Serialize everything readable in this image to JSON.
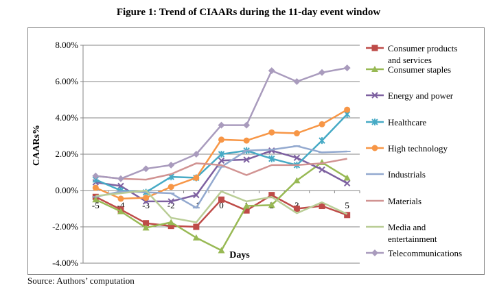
{
  "title": "Figure 1: Trend of CIAARs during the 11-day event window",
  "source": "Source: Authors’ computation",
  "chart_data": {
    "type": "line",
    "title": "Figure 1: Trend of CIAARs during the 11-day event window",
    "xlabel": "Days",
    "ylabel": "CAARs%",
    "categories": [
      "-5",
      "-4",
      "-3",
      "-2",
      "-1",
      "0",
      "1",
      "2",
      "3",
      "4",
      "5"
    ],
    "y_ticks": [
      "-4.00%",
      "-2.00%",
      "0.00%",
      "2.00%",
      "4.00%",
      "6.00%",
      "8.00%"
    ],
    "ylim": [
      -4,
      8
    ],
    "grid": true,
    "legend_position": "right",
    "series": [
      {
        "name": "Consumer products and services",
        "color": "#be4b48",
        "marker": "square",
        "values": [
          -0.35,
          -1.05,
          -1.8,
          -1.95,
          -2.0,
          -0.5,
          -1.1,
          -0.25,
          -1.0,
          -0.85,
          -1.35
        ]
      },
      {
        "name": "Consumer staples",
        "color": "#98b954",
        "marker": "triangle",
        "values": [
          -0.5,
          -1.15,
          -2.05,
          -1.75,
          -2.6,
          -3.3,
          -0.85,
          -0.8,
          0.55,
          1.55,
          0.7
        ]
      },
      {
        "name": "Energy and power",
        "color": "#7d60a0",
        "marker": "x",
        "values": [
          0.45,
          0.25,
          -0.6,
          -0.6,
          -0.25,
          1.65,
          1.7,
          2.2,
          1.8,
          1.15,
          0.4
        ]
      },
      {
        "name": "Healthcare",
        "color": "#46aac5",
        "marker": "star",
        "values": [
          0.6,
          0.0,
          -0.1,
          0.75,
          0.7,
          2.0,
          2.2,
          1.75,
          1.4,
          2.75,
          4.2
        ]
      },
      {
        "name": "High technology",
        "color": "#f79646",
        "marker": "circle",
        "values": [
          0.15,
          -0.45,
          -0.4,
          0.2,
          0.7,
          2.8,
          2.75,
          3.2,
          3.15,
          3.65,
          4.45
        ]
      },
      {
        "name": "Industrials",
        "color": "#93a9cf",
        "marker": "dash",
        "values": [
          -0.35,
          -0.05,
          -0.1,
          -0.15,
          -0.95,
          1.3,
          2.2,
          2.25,
          2.45,
          2.1,
          2.15
        ]
      },
      {
        "name": "Materials",
        "color": "#d19392",
        "marker": "none",
        "values": [
          0.8,
          0.65,
          0.6,
          0.9,
          1.5,
          1.4,
          0.85,
          1.4,
          1.4,
          1.5,
          1.75
        ]
      },
      {
        "name": "Media and entertainment",
        "color": "#b9cd96",
        "marker": "none",
        "values": [
          -0.3,
          -0.15,
          0.0,
          -1.5,
          -1.75,
          -0.05,
          -0.6,
          -0.35,
          -1.25,
          -0.65,
          -1.3
        ]
      },
      {
        "name": "Telecommunications",
        "color": "#a99bbd",
        "marker": "diamond",
        "values": [
          0.8,
          0.65,
          1.2,
          1.4,
          2.0,
          3.6,
          3.6,
          6.6,
          6.0,
          6.5,
          6.75
        ]
      }
    ]
  }
}
